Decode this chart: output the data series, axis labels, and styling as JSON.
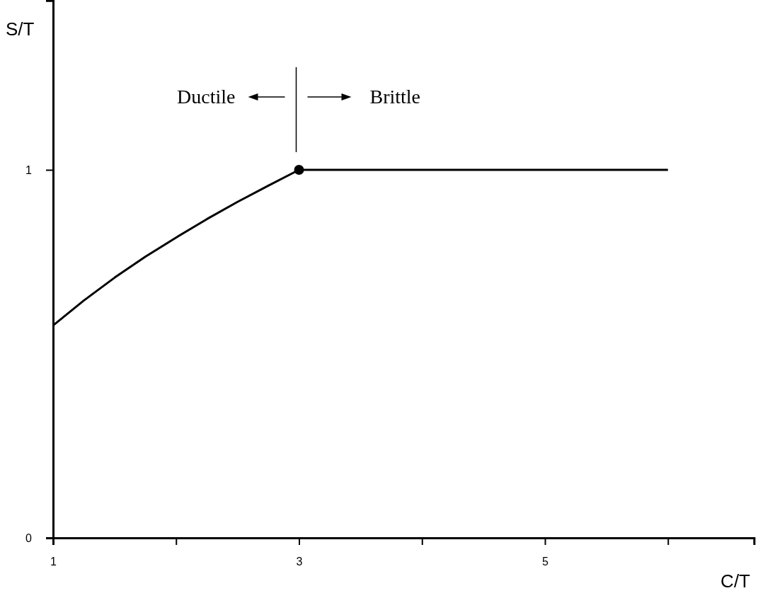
{
  "chart_data": {
    "type": "line",
    "xlabel": "C/T",
    "ylabel": "S/T",
    "xlim": [
      1,
      6.7
    ],
    "ylim": [
      0,
      1.46
    ],
    "xticks": [
      1,
      {
        "value": 2,
        "label": null
      },
      3,
      {
        "value": 4,
        "label": null
      },
      5,
      {
        "value": 6,
        "label": null
      }
    ],
    "yticks": [
      0,
      1
    ],
    "annotations": [
      "Ductile",
      "Brittle"
    ],
    "grid": false,
    "legend": false,
    "line_style": "solid",
    "series": [
      {
        "type": "line",
        "color": "#000000",
        "marker": "none",
        "x": [
          1,
          1.25,
          1.5,
          1.75,
          2,
          2.25,
          2.5,
          2.75,
          3,
          6
        ],
        "values": [
          0.577,
          0.645,
          0.707,
          0.764,
          0.816,
          0.866,
          0.913,
          0.957,
          1,
          1
        ]
      },
      {
        "type": "scatter",
        "color": "#000000",
        "marker": "circle",
        "x": [
          3
        ],
        "values": [
          1
        ]
      }
    ]
  }
}
